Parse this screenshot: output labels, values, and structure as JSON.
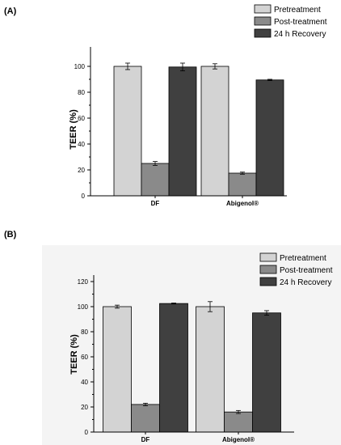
{
  "chart_data": [
    {
      "panel_label": "(A)",
      "type": "bar",
      "ylabel": "TEER (%)",
      "xlabel": "",
      "categories": [
        "DF",
        "Abigenol®"
      ],
      "ylim": [
        0,
        110
      ],
      "yticks": [
        0,
        20,
        40,
        60,
        80,
        100
      ],
      "grid": false,
      "legend": "top-right",
      "series": [
        {
          "name": "Pretreatment",
          "color": "#d3d3d3",
          "values": [
            100,
            100
          ],
          "errors": [
            2.5,
            2.0
          ]
        },
        {
          "name": "Post-treatment",
          "color": "#8a8a8a",
          "values": [
            25,
            17.5
          ],
          "errors": [
            1.5,
            0.8
          ]
        },
        {
          "name": "24 h Recovery",
          "color": "#404040",
          "values": [
            99.5,
            89.5
          ],
          "errors": [
            3.0,
            0.5
          ]
        }
      ]
    },
    {
      "panel_label": "(B)",
      "type": "bar",
      "ylabel": "TEER (%)",
      "xlabel": "",
      "categories": [
        "DF",
        "Abigenol®"
      ],
      "ylim": [
        0,
        120
      ],
      "yticks": [
        0,
        20,
        40,
        60,
        80,
        100,
        120
      ],
      "grid": false,
      "legend": "top-right",
      "series": [
        {
          "name": "Pretreatment",
          "color": "#d3d3d3",
          "values": [
            100,
            100
          ],
          "errors": [
            1.2,
            4.0
          ]
        },
        {
          "name": "Post-treatment",
          "color": "#8a8a8a",
          "values": [
            22,
            16
          ],
          "errors": [
            1.0,
            1.2
          ]
        },
        {
          "name": "24 h Recovery",
          "color": "#404040",
          "values": [
            102.5,
            95
          ],
          "errors": [
            0.4,
            1.8
          ]
        }
      ]
    }
  ]
}
